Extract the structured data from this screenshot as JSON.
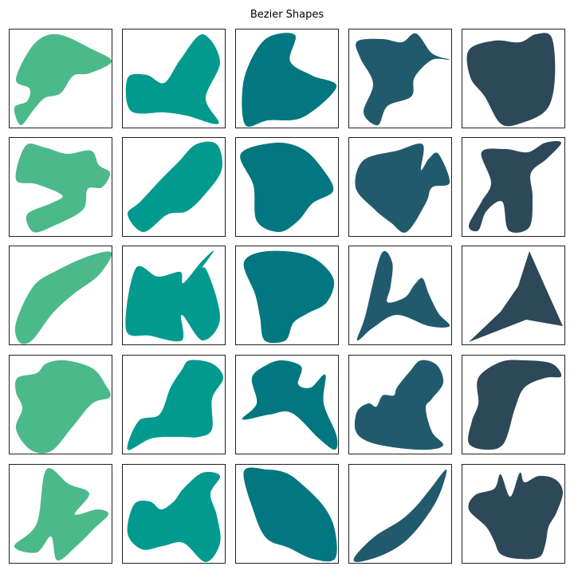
{
  "figure": {
    "title": "Bezier Shapes",
    "columns": 5,
    "rows": 5
  },
  "colors": {
    "column_1": "#4cb98a",
    "column_2": "#029a8f",
    "column_3": "#02777f",
    "column_4": "#225a6d",
    "column_5": "#2c4859"
  },
  "panels": [
    {
      "row": 1,
      "col": 1,
      "color_key": "column_1",
      "icon": "blob-shape"
    },
    {
      "row": 1,
      "col": 2,
      "color_key": "column_2",
      "icon": "blob-shape"
    },
    {
      "row": 1,
      "col": 3,
      "color_key": "column_3",
      "icon": "blob-shape"
    },
    {
      "row": 1,
      "col": 4,
      "color_key": "column_4",
      "icon": "blob-shape"
    },
    {
      "row": 1,
      "col": 5,
      "color_key": "column_5",
      "icon": "blob-shape"
    },
    {
      "row": 2,
      "col": 1,
      "color_key": "column_1",
      "icon": "blob-shape"
    },
    {
      "row": 2,
      "col": 2,
      "color_key": "column_2",
      "icon": "blob-shape"
    },
    {
      "row": 2,
      "col": 3,
      "color_key": "column_3",
      "icon": "blob-shape"
    },
    {
      "row": 2,
      "col": 4,
      "color_key": "column_4",
      "icon": "blob-shape"
    },
    {
      "row": 2,
      "col": 5,
      "color_key": "column_5",
      "icon": "blob-shape"
    },
    {
      "row": 3,
      "col": 1,
      "color_key": "column_1",
      "icon": "blob-shape"
    },
    {
      "row": 3,
      "col": 2,
      "color_key": "column_2",
      "icon": "blob-shape"
    },
    {
      "row": 3,
      "col": 3,
      "color_key": "column_3",
      "icon": "blob-shape"
    },
    {
      "row": 3,
      "col": 4,
      "color_key": "column_4",
      "icon": "blob-shape"
    },
    {
      "row": 3,
      "col": 5,
      "color_key": "column_5",
      "icon": "triangle-shape"
    },
    {
      "row": 4,
      "col": 1,
      "color_key": "column_1",
      "icon": "blob-shape"
    },
    {
      "row": 4,
      "col": 2,
      "color_key": "column_2",
      "icon": "blob-shape"
    },
    {
      "row": 4,
      "col": 3,
      "color_key": "column_3",
      "icon": "blob-shape"
    },
    {
      "row": 4,
      "col": 4,
      "color_key": "column_4",
      "icon": "blob-shape"
    },
    {
      "row": 4,
      "col": 5,
      "color_key": "column_5",
      "icon": "blob-shape"
    },
    {
      "row": 5,
      "col": 1,
      "color_key": "column_1",
      "icon": "blob-shape"
    },
    {
      "row": 5,
      "col": 2,
      "color_key": "column_2",
      "icon": "blob-shape"
    },
    {
      "row": 5,
      "col": 3,
      "color_key": "column_3",
      "icon": "blob-shape"
    },
    {
      "row": 5,
      "col": 4,
      "color_key": "column_4",
      "icon": "leaf-shape"
    },
    {
      "row": 5,
      "col": 5,
      "color_key": "column_5",
      "icon": "blob-shape"
    }
  ]
}
